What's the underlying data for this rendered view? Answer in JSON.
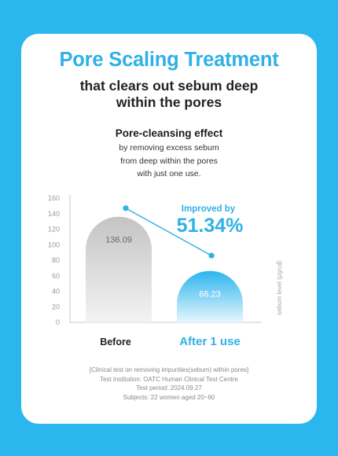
{
  "header": {
    "title": "Pore Scaling Treatment",
    "subtitle": "that clears out sebum deep\nwithin the pores"
  },
  "effect": {
    "title": "Pore-cleansing effect",
    "text": "by removing excess sebum\nfrom deep within the pores\nwith just one use."
  },
  "improvement": {
    "label": "Improved by",
    "value": "51.34%"
  },
  "colors": {
    "accent": "#2fb1e6",
    "background": "#2cb6ee",
    "before_bar": "#c9c9c9",
    "after_bar": "#3bbcef"
  },
  "chart_data": {
    "type": "bar",
    "categories": [
      "Before",
      "After 1 use"
    ],
    "values": [
      136.09,
      66.23
    ],
    "value_labels": [
      "136.09",
      "66.23"
    ],
    "ylabel": "sebum level (μg/㎠)",
    "ylim": [
      0,
      160
    ],
    "yticks": [
      0,
      20,
      40,
      60,
      80,
      100,
      120,
      140,
      160
    ],
    "grid": false,
    "trend_line_points": [
      147,
      86
    ]
  },
  "footnote": {
    "lines": [
      "[Clinical test on removing impurities(sebum) within pores]",
      "Test institution: OATC Human Clinical Test Centre",
      "Test period: 2024.09.27",
      "Subjects: 22 women aged 20~60"
    ]
  }
}
